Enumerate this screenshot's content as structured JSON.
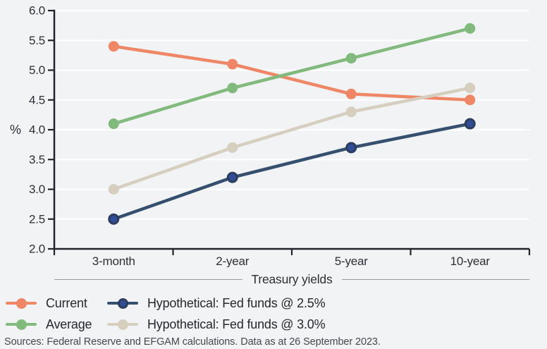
{
  "chart_data": {
    "type": "line",
    "title": "",
    "categories": [
      "3-month",
      "2-year",
      "5-year",
      "10-year"
    ],
    "xlabel": "Treasury yields",
    "ylabel": "%",
    "ylim": [
      2.0,
      6.0
    ],
    "yticks": [
      6.0,
      5.5,
      5.0,
      4.5,
      4.0,
      3.5,
      3.0,
      2.5,
      2.0
    ],
    "grid": true,
    "legend_position": "bottom-left",
    "series": [
      {
        "name": "Current",
        "color": "#ef8767",
        "values": [
          5.4,
          5.1,
          4.6,
          4.5
        ]
      },
      {
        "name": "Average",
        "color": "#82ba7e",
        "values": [
          4.1,
          4.7,
          5.2,
          5.7
        ]
      },
      {
        "name": "Hypothetical: Fed funds @ 2.5%",
        "color": "#35506e",
        "marker_fill": "#324c96",
        "marker_stroke": "#2b3e5e",
        "values": [
          2.5,
          3.2,
          3.7,
          4.1
        ]
      },
      {
        "name": "Hypothetical: Fed funds @ 3.0%",
        "color": "#d6cebf",
        "values": [
          3.0,
          3.7,
          4.3,
          4.7
        ]
      }
    ],
    "footnote": "Sources: Federal Reserve and EFGAM calculations. Data as at 26 September 2023."
  },
  "colors": {
    "background": "#f2f3f5",
    "gridline": "#ffffff",
    "axis": "#23242b",
    "text": "#2e2f36",
    "title_rule": "#97989c",
    "footnote_text": "#46474d"
  }
}
